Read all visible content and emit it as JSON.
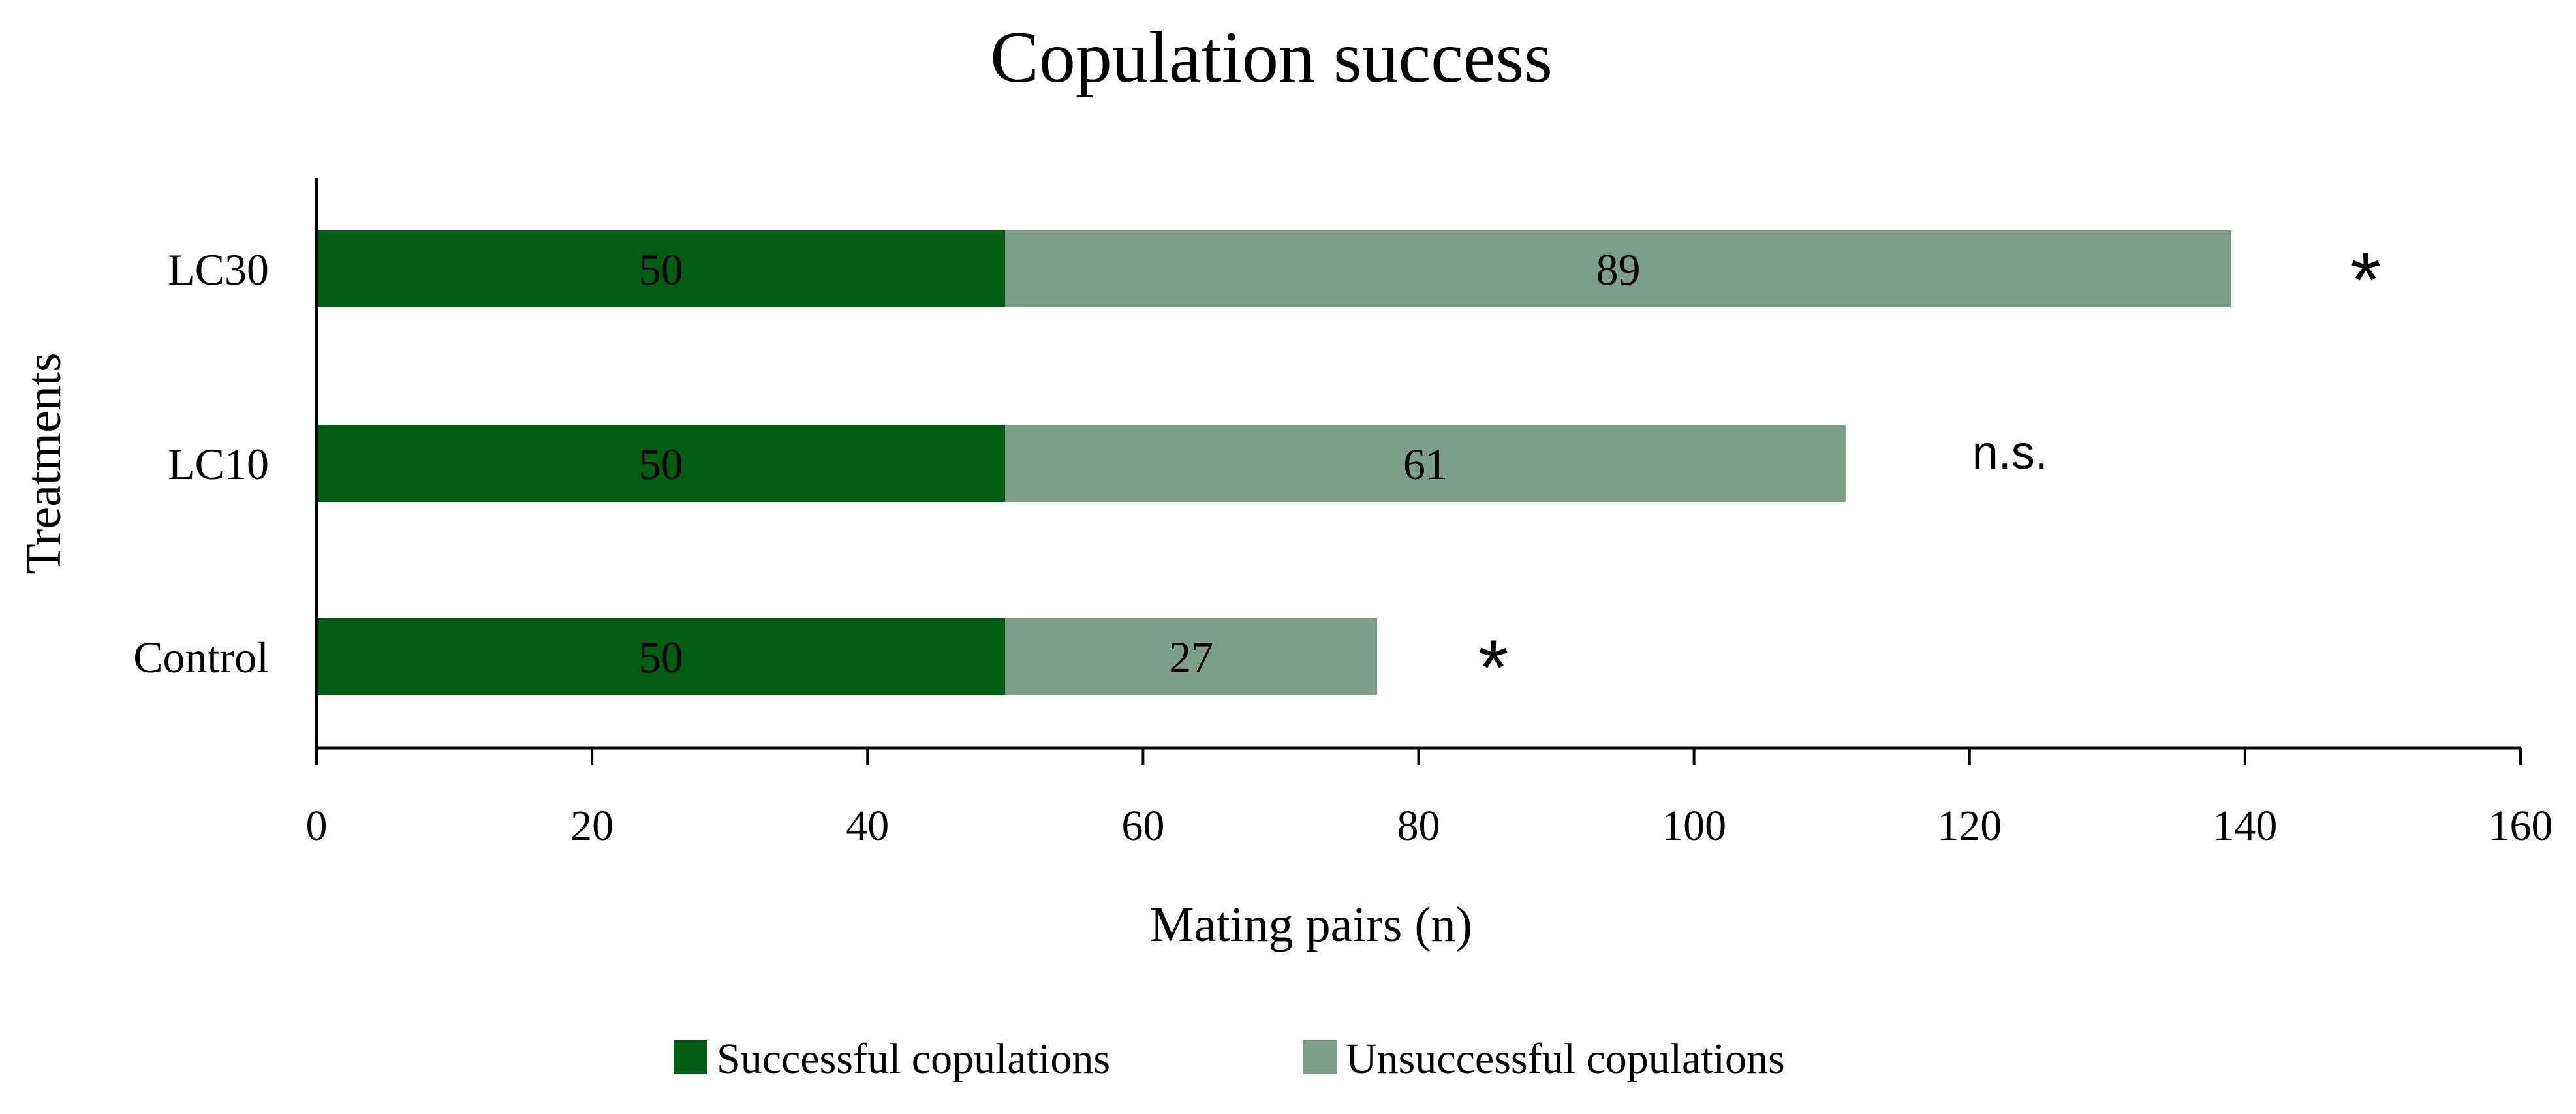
{
  "chart_data": {
    "type": "bar",
    "orientation": "horizontal",
    "stacked": true,
    "title": "Copulation success",
    "xlabel": "Mating pairs (n)",
    "ylabel": "Treatments",
    "categories": [
      "LC30",
      "LC10",
      "Control"
    ],
    "series": [
      {
        "name": "Successful copulations",
        "values": [
          50,
          50,
          50
        ],
        "color": "#035C13"
      },
      {
        "name": "Unsuccessful copulations",
        "values": [
          89,
          61,
          27
        ],
        "color": "#7A9E87"
      }
    ],
    "annotations": [
      "*",
      "n.s.",
      "*"
    ],
    "xlim": [
      0,
      160
    ],
    "xticks": [
      "0",
      "20",
      "40",
      "60",
      "80",
      "100",
      "120",
      "140",
      "160"
    ],
    "grid": false,
    "legend_position": "bottom"
  }
}
